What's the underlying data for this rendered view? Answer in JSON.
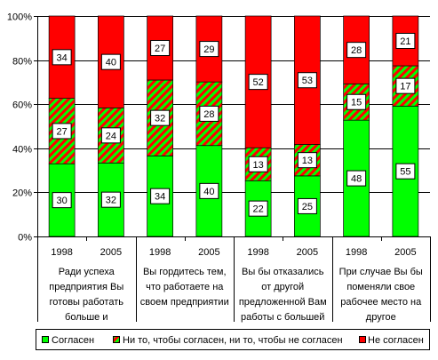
{
  "chart_data": {
    "type": "bar",
    "stacking": "percent",
    "categories": [
      "1998",
      "2005",
      "1998",
      "2005",
      "1998",
      "2005",
      "1998",
      "2005"
    ],
    "groups": [
      {
        "label_lines": [
          "Ради успеха",
          "предприятия Вы",
          "готовы работать",
          "больше и"
        ]
      },
      {
        "label_lines": [
          "Вы гордитесь тем,",
          "что работаете на",
          "своем предприятии"
        ]
      },
      {
        "label_lines": [
          "Вы бы отказались",
          "от другой",
          "предложенной Вам",
          "работы с большей"
        ]
      },
      {
        "label_lines": [
          "При случае Вы бы",
          "поменяли свое",
          "рабочее место на",
          "другое"
        ]
      }
    ],
    "series": [
      {
        "name": "Согласен",
        "color": "#00FF00",
        "values": [
          30,
          32,
          34,
          40,
          22,
          25,
          48,
          55
        ]
      },
      {
        "name": "Ни то, чтобы согласен, ни то, чтобы не согласен",
        "color": "#00FF00",
        "hatch_color": "#FF0000",
        "values": [
          27,
          24,
          32,
          28,
          13,
          13,
          15,
          17
        ]
      },
      {
        "name": "Не согласен",
        "color": "#FF0000",
        "values": [
          34,
          40,
          27,
          29,
          52,
          53,
          28,
          21
        ]
      }
    ],
    "y_ticks": [
      "0%",
      "20%",
      "40%",
      "60%",
      "80%",
      "100%"
    ],
    "ylim": [
      0,
      100
    ],
    "grid": true,
    "legend": "bottom",
    "data_labels": true
  }
}
